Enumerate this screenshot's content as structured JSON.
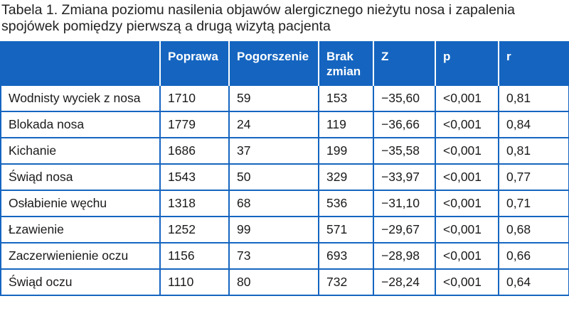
{
  "caption": "Tabela 1. Zmiana poziomu nasilenia objawów alergicznego nieżytu nosa i zapalenia spojówek pomiędzy pierwszą a drugą wizytą pacjenta",
  "colors": {
    "header_bg": "#1565c0",
    "border": "#1565c0",
    "header_text": "#ffffff"
  },
  "table": {
    "headers": [
      "",
      "Poprawa",
      "Pogorszenie",
      "Brak zmian",
      "Z",
      "p",
      "r"
    ],
    "rows": [
      [
        "Wodnisty wyciek z nosa",
        "1710",
        "59",
        "153",
        "−35,60",
        "<0,001",
        "0,81"
      ],
      [
        "Blokada nosa",
        "1779",
        "24",
        "119",
        "−36,66",
        "<0,001",
        "0,84"
      ],
      [
        "Kichanie",
        "1686",
        "37",
        "199",
        "−35,58",
        "<0,001",
        "0,81"
      ],
      [
        "Świąd nosa",
        "1543",
        "50",
        "329",
        "−33,97",
        "<0,001",
        "0,77"
      ],
      [
        "Osłabienie węchu",
        "1318",
        "68",
        "536",
        "−31,10",
        "<0,001",
        "0,71"
      ],
      [
        "Łzawienie",
        "1252",
        "99",
        "571",
        "−29,67",
        "<0,001",
        "0,68"
      ],
      [
        "Zaczerwienienie oczu",
        "1156",
        "73",
        "693",
        "−28,98",
        "<0,001",
        "0,66"
      ],
      [
        "Świąd oczu",
        "1110",
        "80",
        "732",
        "−28,24",
        "<0,001",
        "0,64"
      ]
    ]
  }
}
